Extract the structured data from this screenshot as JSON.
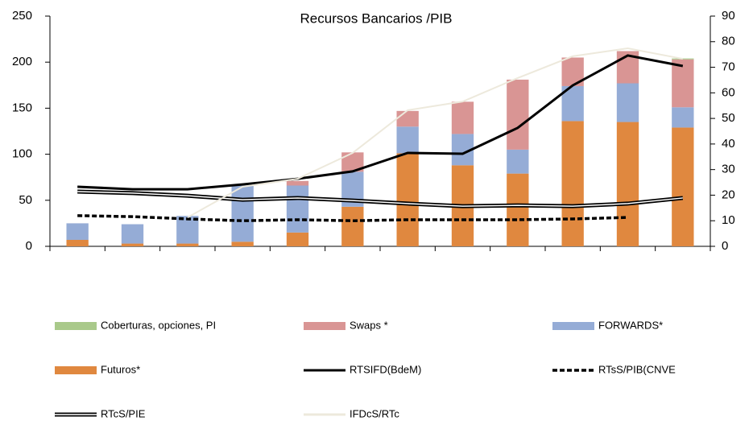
{
  "chart_data": {
    "type": "bar",
    "title": "Recursos Bancarios /PIB",
    "categories": [
      null,
      null,
      null,
      null,
      null,
      null,
      null,
      null,
      null,
      null,
      null,
      null
    ],
    "ylim": [
      0,
      250
    ],
    "yticks": [
      0,
      50,
      100,
      150,
      200,
      250
    ],
    "y2lim": [
      0,
      90
    ],
    "y2ticks": [
      0,
      10,
      20,
      30,
      40,
      50,
      60,
      70,
      80,
      90
    ],
    "series": [
      {
        "name": "Coberturas, opciones, PI",
        "type": "bar",
        "color": "#a9c98a",
        "values": [
          0,
          0,
          0,
          0,
          0,
          0,
          0,
          0,
          0,
          0,
          0,
          1
        ]
      },
      {
        "name": "Swaps  *",
        "type": "bar",
        "color": "#d99594",
        "values": [
          0,
          0,
          0,
          0,
          5,
          21,
          17,
          35,
          76,
          31,
          35,
          52
        ]
      },
      {
        "name": "FORWARDS*",
        "type": "bar",
        "color": "#95acd6",
        "values": [
          18,
          21,
          30,
          62,
          51,
          38,
          29,
          34,
          26,
          38,
          42,
          22
        ]
      },
      {
        "name": "Futuros*",
        "type": "bar",
        "color": "#e0883f",
        "values": [
          7,
          3,
          3,
          5,
          15,
          43,
          101,
          88,
          79,
          136,
          135,
          129
        ]
      },
      {
        "name": "RTSIFD(BdeM)",
        "type": "line",
        "axis": "y2",
        "style": "solid",
        "color": "#000000",
        "values": [
          23.3,
          22.3,
          22.3,
          24.2,
          26.4,
          29.3,
          36.5,
          36.2,
          46.3,
          62.9,
          74.6,
          70.5
        ]
      },
      {
        "name": "RTsS/PIB(CNVE",
        "type": "line",
        "axis": "y2",
        "style": "dashed",
        "color": "#000000",
        "values": [
          12,
          11.6,
          10.7,
          10,
          10.4,
          10,
          10.4,
          10.4,
          10.4,
          10.7,
          11.3,
          null
        ]
      },
      {
        "name": "RTcS/PIE",
        "type": "line",
        "axis": "y2",
        "style": "double",
        "color": "#000000",
        "values": [
          21.4,
          20.8,
          19.8,
          18.2,
          18.9,
          17.9,
          16.7,
          15.7,
          16,
          15.7,
          16.7,
          18.9
        ]
      },
      {
        "name": "IFDcS/RTc",
        "type": "line",
        "axis": "y2",
        "style": "solid",
        "color": "#ede9dc",
        "values": [
          null,
          null,
          11.3,
          23.3,
          26.4,
          36.5,
          53.2,
          56.6,
          65.8,
          74.3,
          77.4,
          73.3
        ]
      }
    ]
  }
}
